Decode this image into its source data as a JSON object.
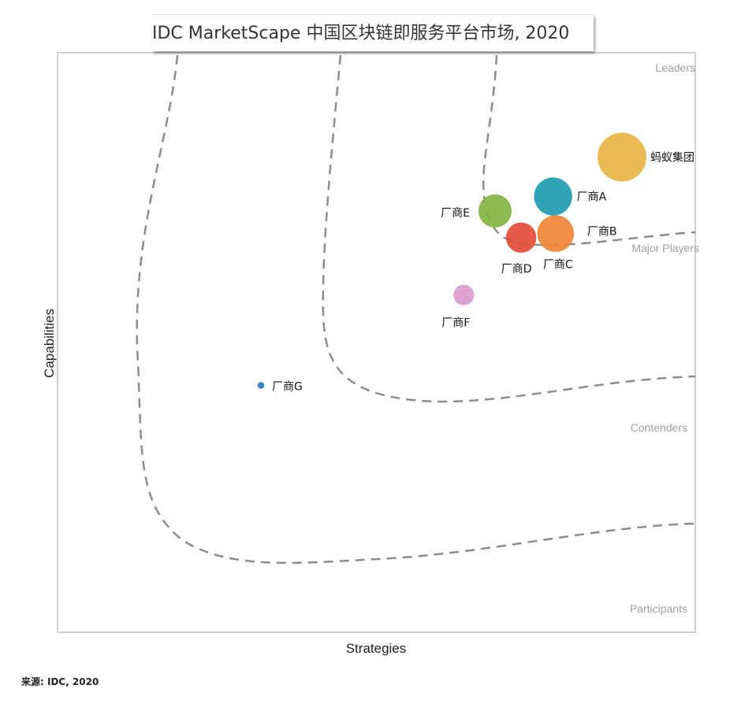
{
  "title": "IDC MarketScape 中国区块链即服务平台市场, 2020",
  "source": "来源: IDC, 2020",
  "chart_data": {
    "type": "scatter",
    "title": "IDC MarketScape 中国区块链即服务平台市场, 2020",
    "xlabel": "Strategies",
    "ylabel": "Capabilities",
    "xlim": [
      0,
      1
    ],
    "ylim": [
      0,
      1
    ],
    "grid": false,
    "zones": [
      "Leaders",
      "Major Players",
      "Contenders",
      "Participants"
    ],
    "points": [
      {
        "label": "蚂蚁集团",
        "x": 0.885,
        "y": 0.82,
        "size": 1.0,
        "color": "#E8B547"
      },
      {
        "label": "厂商A",
        "x": 0.777,
        "y": 0.752,
        "size": 0.78,
        "color": "#1E9BB0"
      },
      {
        "label": "厂商B",
        "x": 0.781,
        "y": 0.688,
        "size": 0.75,
        "color": "#EE8434"
      },
      {
        "label": "厂商C",
        "x": 0.781,
        "y": 0.688,
        "size": 0.75,
        "color": "#EE8434"
      },
      {
        "label": "厂商D",
        "x": 0.727,
        "y": 0.681,
        "size": 0.62,
        "color": "#E34A33"
      },
      {
        "label": "厂商E",
        "x": 0.686,
        "y": 0.727,
        "size": 0.68,
        "color": "#82B442"
      },
      {
        "label": "厂商F",
        "x": 0.637,
        "y": 0.582,
        "size": 0.42,
        "color": "#DA9ACB"
      },
      {
        "label": "厂商G",
        "x": 0.319,
        "y": 0.426,
        "size": 0.14,
        "color": "#2F78B8"
      }
    ]
  }
}
